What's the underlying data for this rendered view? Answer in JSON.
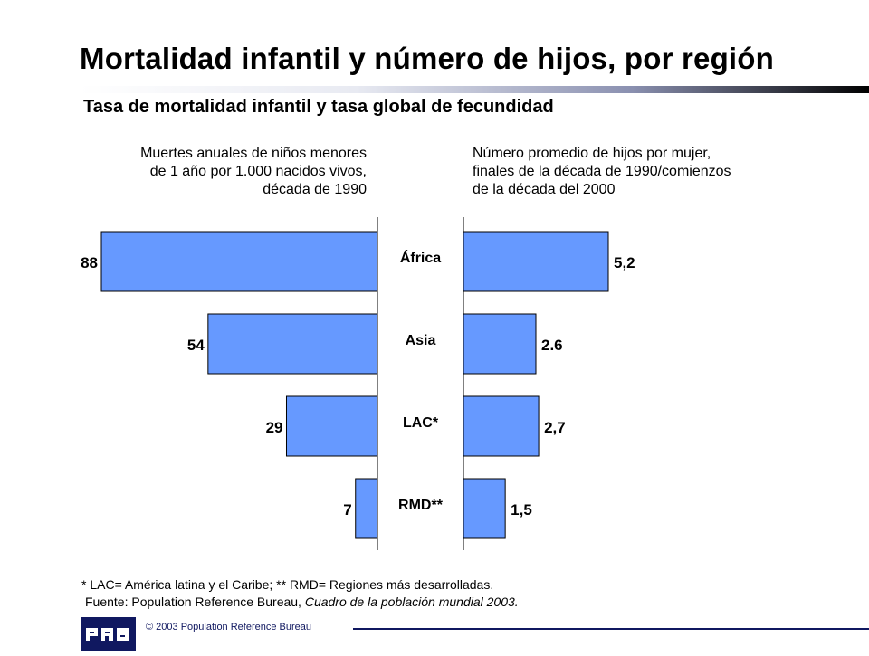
{
  "header": {
    "title": "Mortalidad infantil y número de hijos, por región",
    "subtitle": "Tasa de mortalidad infantil y tasa global de fecundidad"
  },
  "captions": {
    "left": [
      "Muertes anuales de niños menores",
      "de 1 año por 1.000 nacidos vivos,",
      "década de 1990"
    ],
    "right": [
      "Número promedio de hijos por mujer,",
      "finales de la década de 1990/comienzos",
      "de la década del 2000"
    ]
  },
  "chart_data": {
    "type": "bar",
    "orientation": "horizontal-butterfly",
    "categories": [
      "África",
      "Asia",
      "LAC*",
      "RMD**"
    ],
    "series": [
      {
        "values": [
          88,
          54,
          29,
          7
        ],
        "labels": [
          "88",
          "54",
          "29",
          "7"
        ],
        "direction": "left"
      },
      {
        "values": [
          5.2,
          2.6,
          2.7,
          1.5
        ],
        "labels": [
          "5,2",
          "2.6",
          "2,7",
          "1,5"
        ],
        "direction": "right"
      }
    ],
    "bar_color": "#6699ff",
    "grid": false,
    "legend": "none"
  },
  "footer": {
    "footnote": "* LAC= América latina y el Caribe; ** RMD= Regiones más desarrolladas.",
    "source_prefix": "Fuente: Population Reference Bureau, ",
    "source_title": "Cuadro de la población mundial 2003.",
    "logo_text": "PRB",
    "copyright": "© 2003  Population Reference Bureau"
  }
}
